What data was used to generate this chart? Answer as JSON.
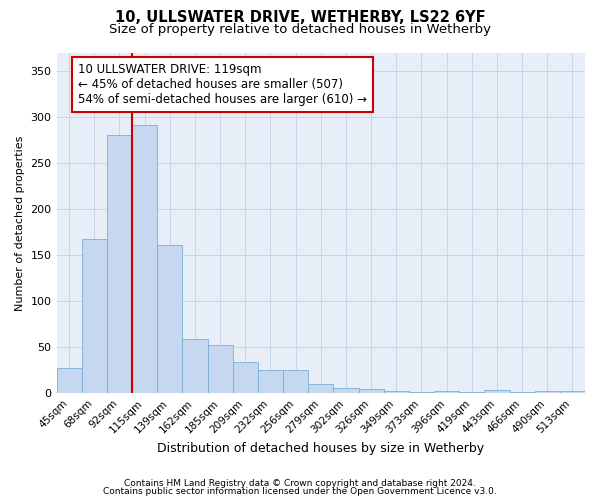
{
  "title_line1": "10, ULLSWATER DRIVE, WETHERBY, LS22 6YF",
  "title_line2": "Size of property relative to detached houses in Wetherby",
  "xlabel": "Distribution of detached houses by size in Wetherby",
  "ylabel": "Number of detached properties",
  "categories": [
    "45sqm",
    "68sqm",
    "92sqm",
    "115sqm",
    "139sqm",
    "162sqm",
    "185sqm",
    "209sqm",
    "232sqm",
    "256sqm",
    "279sqm",
    "302sqm",
    "326sqm",
    "349sqm",
    "373sqm",
    "396sqm",
    "419sqm",
    "443sqm",
    "466sqm",
    "490sqm",
    "513sqm"
  ],
  "values": [
    28,
    168,
    280,
    291,
    161,
    59,
    52,
    34,
    25,
    25,
    10,
    6,
    5,
    3,
    1,
    3,
    1,
    4,
    1,
    3,
    3
  ],
  "bar_color": "#c5d8f0",
  "bar_edge_color": "#7aafd4",
  "vline_color": "#cc0000",
  "vline_index": 3,
  "annotation_line1": "10 ULLSWATER DRIVE: 119sqm",
  "annotation_line2": "← 45% of detached houses are smaller (507)",
  "annotation_line3": "54% of semi-detached houses are larger (610) →",
  "annotation_box_color": "#ffffff",
  "annotation_box_edge": "#cc0000",
  "ylim": [
    0,
    370
  ],
  "yticks": [
    0,
    50,
    100,
    150,
    200,
    250,
    300,
    350
  ],
  "footer_line1": "Contains HM Land Registry data © Crown copyright and database right 2024.",
  "footer_line2": "Contains public sector information licensed under the Open Government Licence v3.0.",
  "bg_color": "#ffffff",
  "ax_bg_color": "#e8eef8",
  "grid_color": "#c8d4e8",
  "title_fontsize": 10.5,
  "subtitle_fontsize": 9.5,
  "ylabel_fontsize": 8,
  "xlabel_fontsize": 9,
  "tick_fontsize": 7.5,
  "footer_fontsize": 6.5,
  "bar_width": 1.0
}
